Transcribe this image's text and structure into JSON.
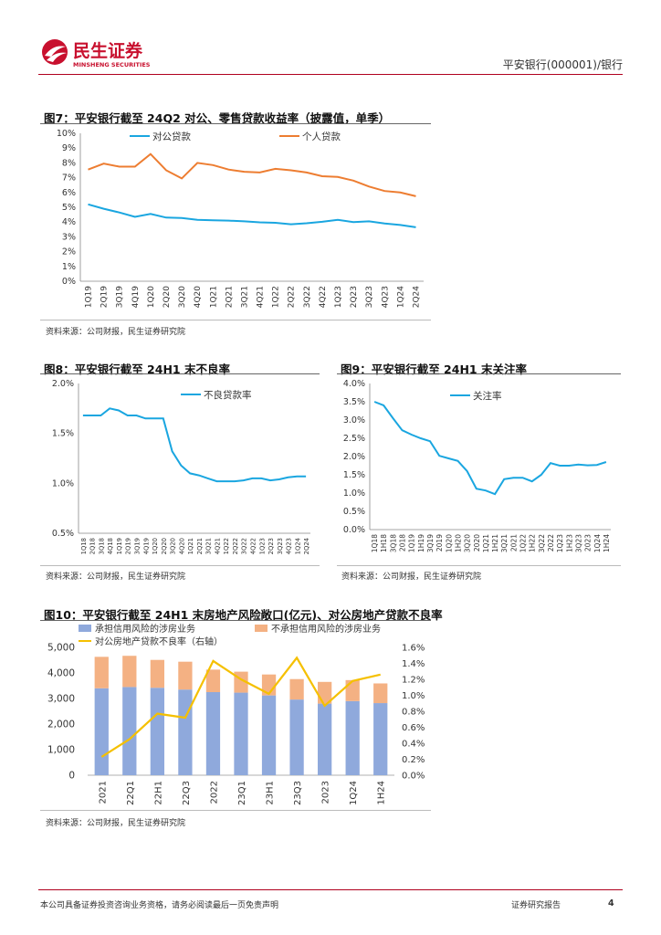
{
  "header": {
    "brand_cn": "民生证券",
    "brand_en": "MINSHENG SECURITIES",
    "report_tag": "平安银行(000001)/银行",
    "brand_color": "#c8102e"
  },
  "source_note": "资料来源：公司财报，民生证券研究院",
  "footer": {
    "disclaimer": "本公司具备证券投资咨询业务资格，请务必阅读最后一页免责声明",
    "report_type": "证券研究报告",
    "page": "4"
  },
  "fig7": {
    "title": "图7：平安银行截至 24Q2 对公、零售贷款收益率（披露值，单季）"
  },
  "fig8": {
    "title": "图8：平安银行截至 24H1 末不良率"
  },
  "fig9": {
    "title": "图9：平安银行截至 24H1 末关注率"
  },
  "fig10": {
    "title": "图10：平安银行截至 24H1 末房地产风险敞口(亿元)、对公房地产贷款不良率"
  },
  "chart_data": [
    {
      "id": "fig7",
      "type": "line",
      "categories": [
        "1Q19",
        "2Q19",
        "3Q19",
        "4Q19",
        "1Q20",
        "2Q20",
        "3Q20",
        "4Q20",
        "1Q21",
        "2Q21",
        "3Q21",
        "4Q21",
        "1Q22",
        "2Q22",
        "3Q22",
        "4Q22",
        "1Q23",
        "2Q23",
        "3Q23",
        "4Q23",
        "1Q24",
        "2Q24"
      ],
      "series": [
        {
          "name": "对公贷款",
          "color": "#1aa6e0",
          "values": [
            5.2,
            4.9,
            4.65,
            4.35,
            4.55,
            4.3,
            4.28,
            4.15,
            4.12,
            4.1,
            4.05,
            3.98,
            3.95,
            3.85,
            3.92,
            4.02,
            4.15,
            4.0,
            4.05,
            3.9,
            3.8,
            3.65
          ]
        },
        {
          "name": "个人贷款",
          "color": "#ed7d31",
          "values": [
            7.55,
            7.95,
            7.75,
            7.75,
            8.6,
            7.5,
            6.95,
            8.0,
            7.85,
            7.55,
            7.4,
            7.35,
            7.6,
            7.5,
            7.35,
            7.1,
            7.05,
            6.8,
            6.4,
            6.1,
            6.0,
            5.75
          ]
        }
      ],
      "y_ticks": [
        "0%",
        "1%",
        "2%",
        "3%",
        "4%",
        "5%",
        "6%",
        "7%",
        "8%",
        "9%",
        "10%"
      ],
      "ylim": [
        0,
        10
      ]
    },
    {
      "id": "fig8",
      "type": "line",
      "categories": [
        "1Q18",
        "2Q18",
        "3Q18",
        "4Q18",
        "1Q19",
        "2Q19",
        "3Q19",
        "4Q19",
        "1Q20",
        "2Q20",
        "3Q20",
        "4Q20",
        "1Q21",
        "2Q21",
        "3Q21",
        "4Q21",
        "1Q22",
        "2Q22",
        "3Q22",
        "4Q22",
        "1Q23",
        "2Q23",
        "3Q23",
        "4Q23",
        "1Q24",
        "2Q24"
      ],
      "series": [
        {
          "name": "不良贷款率",
          "color": "#1aa6e0",
          "values": [
            1.68,
            1.68,
            1.68,
            1.75,
            1.73,
            1.68,
            1.68,
            1.65,
            1.65,
            1.65,
            1.32,
            1.18,
            1.1,
            1.08,
            1.05,
            1.02,
            1.02,
            1.02,
            1.03,
            1.05,
            1.05,
            1.03,
            1.04,
            1.06,
            1.07,
            1.07
          ]
        }
      ],
      "y_ticks": [
        "0.5%",
        "1.0%",
        "1.5%",
        "2.0%"
      ],
      "ylim": [
        0.5,
        2.0
      ]
    },
    {
      "id": "fig9",
      "type": "line",
      "categories": [
        "1Q18",
        "1H18",
        "3Q18",
        "2018",
        "1Q19",
        "1H19",
        "3Q19",
        "2019",
        "1Q20",
        "1H20",
        "3Q20",
        "2020",
        "1Q21",
        "1H21",
        "3Q21",
        "2021",
        "1Q22",
        "1H22",
        "3Q22",
        "2022",
        "1Q23",
        "1H23",
        "3Q23",
        "2023",
        "1Q24",
        "1H24"
      ],
      "series": [
        {
          "name": "关注率",
          "color": "#1aa6e0",
          "values": [
            3.5,
            3.4,
            3.05,
            2.72,
            2.6,
            2.5,
            2.42,
            2.02,
            1.95,
            1.88,
            1.6,
            1.12,
            1.07,
            0.97,
            1.38,
            1.42,
            1.42,
            1.32,
            1.5,
            1.82,
            1.75,
            1.75,
            1.78,
            1.76,
            1.77,
            1.85
          ]
        }
      ],
      "y_ticks": [
        "0.0%",
        "0.5%",
        "1.0%",
        "1.5%",
        "2.0%",
        "2.5%",
        "3.0%",
        "3.5%",
        "4.0%"
      ],
      "ylim": [
        0,
        4.0
      ]
    },
    {
      "id": "fig10",
      "type": "bar",
      "categories": [
        "2021",
        "22Q1",
        "22H1",
        "22Q3",
        "2022",
        "23Q1",
        "23H1",
        "23Q3",
        "2023",
        "1Q24",
        "1H24"
      ],
      "series": [
        {
          "name": "承担信用风险的涉房业务",
          "color": "#8fa9dc",
          "values": [
            3400,
            3450,
            3420,
            3350,
            3250,
            3230,
            3120,
            2960,
            2800,
            2900,
            2820
          ]
        },
        {
          "name": "不承担信用风险的涉房业务",
          "color": "#f4b183",
          "values": [
            1230,
            1220,
            1090,
            1090,
            880,
            820,
            820,
            800,
            850,
            820,
            770
          ]
        },
        {
          "name": "对公房地产贷款不良率（右轴）",
          "color": "#f5c000",
          "axis": "right",
          "values": [
            0.23,
            0.45,
            0.77,
            0.72,
            1.43,
            1.2,
            1.02,
            1.47,
            0.87,
            1.18,
            1.26
          ]
        }
      ],
      "y_ticks": [
        "0",
        "1,000",
        "2,000",
        "3,000",
        "4,000",
        "5,000"
      ],
      "ylim": [
        0,
        5000
      ],
      "y2_ticks": [
        "0.0%",
        "0.2%",
        "0.4%",
        "0.6%",
        "0.8%",
        "1.0%",
        "1.2%",
        "1.4%",
        "1.6%"
      ],
      "y2lim": [
        0,
        1.6
      ]
    }
  ]
}
